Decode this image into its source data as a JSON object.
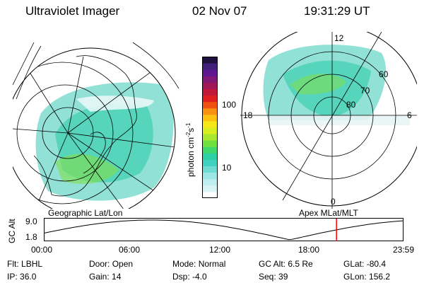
{
  "header": {
    "title": "Ultraviolet Imager",
    "date": "02 Nov 07",
    "time": "19:31:29 UT"
  },
  "colorbar": {
    "label": "photon cm",
    "label_sup1": "-2",
    "label_mid": "s",
    "label_sup2": "-1",
    "ticks": [
      {
        "value": 100,
        "label": "100"
      },
      {
        "value": 10,
        "label": "10"
      }
    ],
    "colors": [
      "#ffffff",
      "#d9f4f4",
      "#bfeeee",
      "#9fe6e6",
      "#6fdcd4",
      "#3fd2c0",
      "#2fcfa6",
      "#3fd86e",
      "#70e040",
      "#a8e830",
      "#d8ee20",
      "#f4e818",
      "#fcc010",
      "#f89010",
      "#f05010",
      "#e02020",
      "#c01838",
      "#a01858",
      "#801878",
      "#601890",
      "#402078",
      "#201040"
    ],
    "scale": "log"
  },
  "left_map": {
    "label": "Geographic Lat/Lon"
  },
  "right_map": {
    "label": "Apex  MLat/MLT",
    "mlt_labels": {
      "top": "12",
      "left": "18",
      "right": "6",
      "bottom": "0"
    },
    "lat_labels": [
      "60",
      "70",
      "80"
    ]
  },
  "timeline": {
    "ylabel": "GC Alt",
    "y_top": "9.0",
    "y_bottom": "1.8",
    "x_ticks": [
      "00:00",
      "06:00",
      "12:00",
      "18:00",
      "23:59"
    ],
    "current_time_hours": 19.52,
    "line_color": "#ff0000"
  },
  "info": {
    "flt_label": "Flt:",
    "flt": "LBHL",
    "door_label": "Door:",
    "door": "Open",
    "mode_label": "Mode:",
    "mode": "Normal",
    "gcalt_label": "GC Alt:",
    "gcalt": "6.5 Re",
    "glat_label": "GLat:",
    "glat": "-80.4",
    "ip_label": "IP:",
    "ip": "36.0",
    "gain_label": "Gain:",
    "gain": "14",
    "dsp_label": "Dsp:",
    "dsp": "-4.0",
    "seq_label": "Seq:",
    "seq": "39",
    "glon_label": "GLon:",
    "glon": "156.2"
  }
}
